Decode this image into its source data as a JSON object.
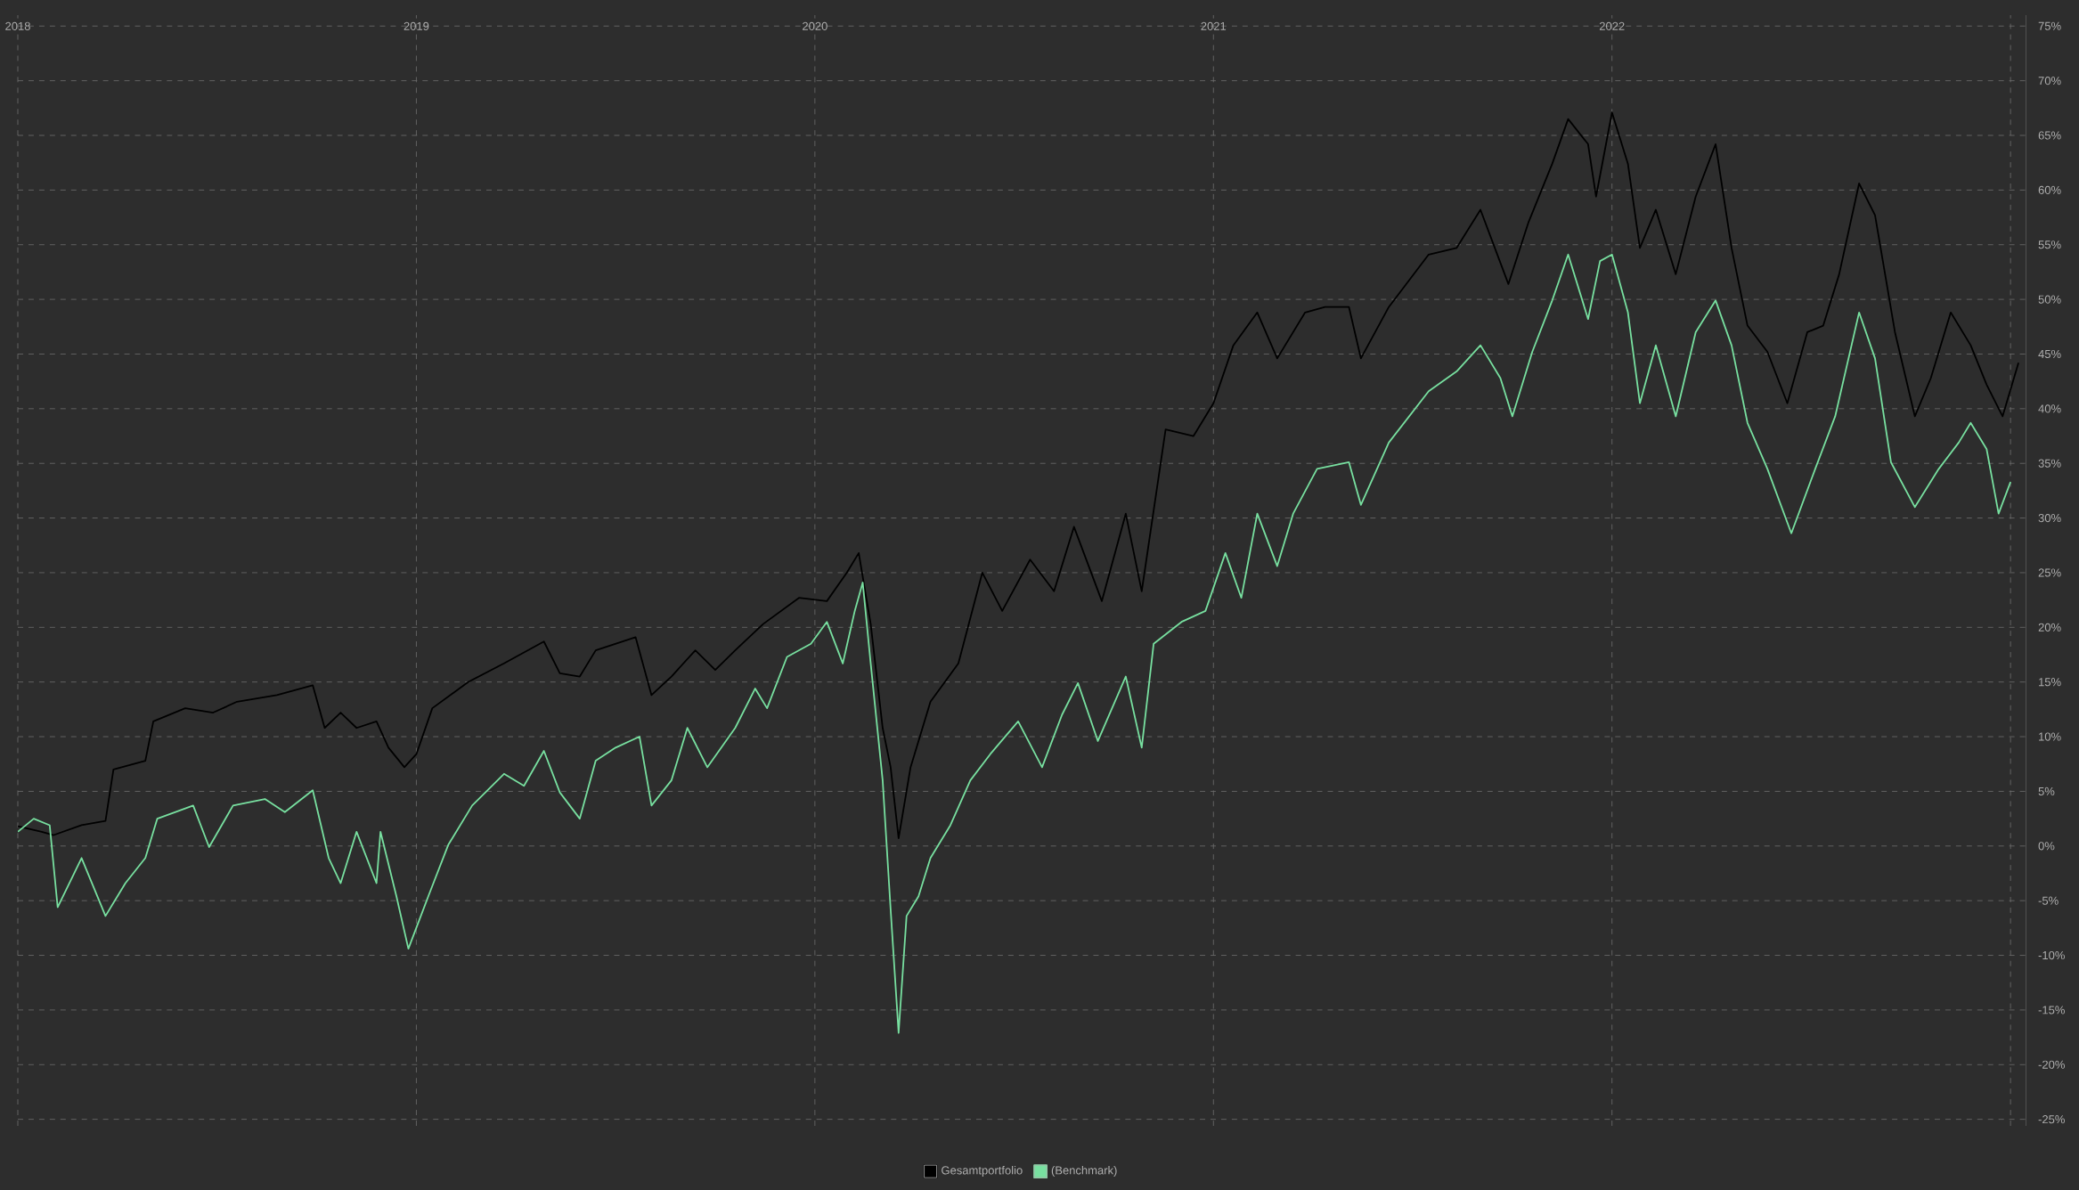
{
  "chart_data": {
    "type": "line",
    "xlim": [
      2018,
      2023.04
    ],
    "xticks": [
      2018,
      2019,
      2020,
      2021,
      2022,
      {
        "value": 2023,
        "label": null
      }
    ],
    "ylim": [
      -25.6,
      76
    ],
    "yticks": [
      {
        "value": -25,
        "label": "-25%"
      },
      {
        "value": -20,
        "label": "-20%"
      },
      {
        "value": -15,
        "label": "-15%"
      },
      {
        "value": -10,
        "label": "-10%"
      },
      {
        "value": -5,
        "label": "-5%"
      },
      {
        "value": 0,
        "label": "0%"
      },
      {
        "value": 5,
        "label": "5%"
      },
      {
        "value": 10,
        "label": "10%"
      },
      {
        "value": 15,
        "label": "15%"
      },
      {
        "value": 20,
        "label": "20%"
      },
      {
        "value": 25,
        "label": "25%"
      },
      {
        "value": 30,
        "label": "30%"
      },
      {
        "value": 35,
        "label": "35%"
      },
      {
        "value": 40,
        "label": "40%"
      },
      {
        "value": 45,
        "label": "45%"
      },
      {
        "value": 50,
        "label": "50%"
      },
      {
        "value": 55,
        "label": "55%"
      },
      {
        "value": 60,
        "label": "60%"
      },
      {
        "value": 65,
        "label": "65%"
      },
      {
        "value": 70,
        "label": "70%"
      },
      {
        "value": 75,
        "label": "75%"
      }
    ],
    "grid": true,
    "legend": "bottom",
    "marker": "none",
    "series": [
      {
        "name": "Gesamtportfolio",
        "color": "#000000",
        "x": [
          2018.0,
          2018.06,
          2018.09,
          2018.16,
          2018.22,
          2018.24,
          2018.32,
          2018.34,
          2018.42,
          2018.49,
          2018.55,
          2018.65,
          2018.74,
          2018.77,
          2018.81,
          2018.85,
          2018.9,
          2018.93,
          2018.97,
          2019.0,
          2019.04,
          2019.13,
          2019.22,
          2019.32,
          2019.36,
          2019.41,
          2019.45,
          2019.55,
          2019.59,
          2019.64,
          2019.7,
          2019.75,
          2019.8,
          2019.87,
          2019.96,
          2020.03,
          2020.08,
          2020.11,
          2020.14,
          2020.17,
          2020.19,
          2020.21,
          2020.24,
          2020.29,
          2020.36,
          2020.42,
          2020.47,
          2020.54,
          2020.6,
          2020.65,
          2020.72,
          2020.78,
          2020.82,
          2020.88,
          2020.95,
          2021.0,
          2021.05,
          2021.11,
          2021.16,
          2021.23,
          2021.28,
          2021.34,
          2021.37,
          2021.44,
          2021.54,
          2021.61,
          2021.67,
          2021.74,
          2021.79,
          2021.85,
          2021.89,
          2021.94,
          2021.96,
          2022.0,
          2022.04,
          2022.07,
          2022.11,
          2022.16,
          2022.21,
          2022.26,
          2022.3,
          2022.34,
          2022.39,
          2022.44,
          2022.49,
          2022.53,
          2022.57,
          2022.62,
          2022.66,
          2022.71,
          2022.76,
          2022.8,
          2022.85,
          2022.9,
          2022.94,
          2022.98,
          2023.02
        ],
        "values": [
          1.8,
          1.3,
          1.0,
          1.9,
          2.3,
          7.0,
          7.8,
          11.4,
          12.6,
          12.2,
          13.2,
          13.8,
          14.7,
          10.8,
          12.2,
          10.8,
          11.4,
          9.0,
          7.2,
          8.4,
          12.6,
          15.0,
          16.7,
          18.7,
          15.8,
          15.5,
          17.9,
          19.1,
          13.8,
          15.5,
          17.9,
          16.1,
          17.9,
          20.3,
          22.7,
          22.4,
          25.0,
          26.8,
          20.3,
          10.8,
          7.2,
          0.7,
          7.2,
          13.2,
          16.7,
          25.0,
          21.5,
          26.2,
          23.3,
          29.2,
          22.4,
          30.4,
          23.3,
          38.1,
          37.5,
          40.5,
          45.8,
          48.8,
          44.6,
          48.8,
          49.3,
          49.3,
          44.6,
          49.3,
          54.1,
          54.7,
          58.2,
          51.4,
          57.0,
          62.4,
          66.5,
          64.2,
          59.4,
          67.1,
          62.4,
          54.7,
          58.2,
          52.3,
          59.4,
          64.2,
          54.7,
          47.6,
          45.2,
          40.5,
          47.0,
          47.6,
          52.3,
          60.6,
          57.7,
          47.0,
          39.3,
          42.8,
          48.8,
          45.8,
          42.2,
          39.3,
          44.2
        ]
      },
      {
        "name": "(Benchmark)",
        "color": "#78e0a0",
        "x": [
          2018.0,
          2018.04,
          2018.08,
          2018.1,
          2018.16,
          2018.22,
          2018.27,
          2018.32,
          2018.35,
          2018.44,
          2018.48,
          2018.54,
          2018.62,
          2018.67,
          2018.74,
          2018.78,
          2018.81,
          2018.85,
          2018.9,
          2018.91,
          2018.95,
          2018.98,
          2019.03,
          2019.08,
          2019.14,
          2019.22,
          2019.27,
          2019.32,
          2019.36,
          2019.41,
          2019.45,
          2019.5,
          2019.56,
          2019.59,
          2019.64,
          2019.68,
          2019.73,
          2019.8,
          2019.85,
          2019.88,
          2019.93,
          2019.99,
          2020.03,
          2020.07,
          2020.1,
          2020.12,
          2020.14,
          2020.17,
          2020.19,
          2020.21,
          2020.23,
          2020.26,
          2020.29,
          2020.34,
          2020.39,
          2020.44,
          2020.51,
          2020.57,
          2020.62,
          2020.66,
          2020.71,
          2020.78,
          2020.82,
          2020.85,
          2020.92,
          2020.98,
          2021.03,
          2021.07,
          2021.11,
          2021.16,
          2021.2,
          2021.26,
          2021.34,
          2021.37,
          2021.44,
          2021.54,
          2021.61,
          2021.67,
          2021.72,
          2021.75,
          2021.8,
          2021.85,
          2021.89,
          2021.94,
          2021.97,
          2022.0,
          2022.04,
          2022.07,
          2022.11,
          2022.16,
          2022.21,
          2022.26,
          2022.3,
          2022.34,
          2022.39,
          2022.45,
          2022.51,
          2022.56,
          2022.62,
          2022.66,
          2022.7,
          2022.76,
          2022.82,
          2022.87,
          2022.9,
          2022.94,
          2022.97,
          2023.0
        ],
        "values": [
          1.3,
          2.5,
          1.9,
          -5.6,
          -1.1,
          -6.4,
          -3.4,
          -1.1,
          2.5,
          3.7,
          -0.1,
          3.7,
          4.3,
          3.1,
          5.1,
          -1.1,
          -3.4,
          1.3,
          -3.4,
          1.3,
          -4.6,
          -9.4,
          -4.6,
          0.1,
          3.7,
          6.6,
          5.5,
          8.7,
          4.9,
          2.5,
          7.8,
          9.0,
          10.0,
          3.7,
          6.0,
          10.8,
          7.2,
          10.8,
          14.4,
          12.6,
          17.3,
          18.5,
          20.5,
          16.7,
          21.5,
          24.1,
          16.7,
          6.0,
          -5.8,
          -17.1,
          -6.4,
          -4.6,
          -1.1,
          1.9,
          6.0,
          8.4,
          11.4,
          7.2,
          12.0,
          14.9,
          9.6,
          15.5,
          9.0,
          18.5,
          20.5,
          21.5,
          26.8,
          22.7,
          30.4,
          25.6,
          30.4,
          34.5,
          35.1,
          31.2,
          36.9,
          41.6,
          43.4,
          45.8,
          42.8,
          39.3,
          45.2,
          49.9,
          54.1,
          48.2,
          53.5,
          54.1,
          48.8,
          40.5,
          45.8,
          39.3,
          47.0,
          49.9,
          45.8,
          38.7,
          34.5,
          28.6,
          34.5,
          39.3,
          48.8,
          44.6,
          35.1,
          31.0,
          34.5,
          36.9,
          38.7,
          36.3,
          30.4,
          33.3
        ]
      }
    ]
  }
}
